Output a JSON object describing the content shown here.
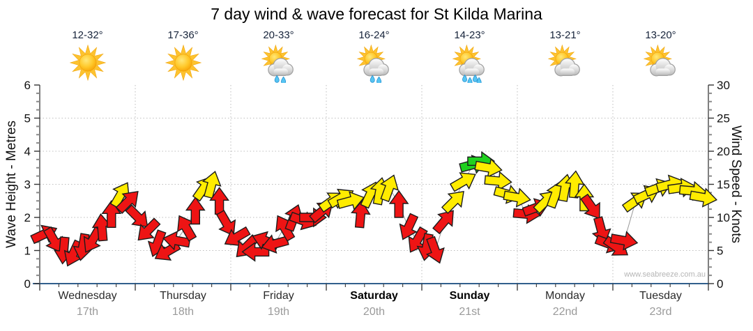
{
  "title": "7 day wind & wave forecast for St Kilda Marina",
  "watermark": "www.seabreeze.com.au",
  "axes": {
    "left": {
      "title": "Wave Height - Metres",
      "ticks": [
        "0",
        "1",
        "2",
        "3",
        "4",
        "5",
        "6"
      ]
    },
    "right": {
      "title": "Wind Speed - Knots",
      "ticks": [
        "0",
        "5",
        "10",
        "15",
        "20",
        "25",
        "30"
      ]
    }
  },
  "days": [
    {
      "name": "Wednesday",
      "date": "17th",
      "temp": "12-32°",
      "icon": "sun",
      "weekend": false
    },
    {
      "name": "Thursday",
      "date": "18th",
      "temp": "17-36°",
      "icon": "sun",
      "weekend": false
    },
    {
      "name": "Friday",
      "date": "19th",
      "temp": "20-33°",
      "icon": "sun-cloud-rain",
      "weekend": false
    },
    {
      "name": "Saturday",
      "date": "20th",
      "temp": "16-24°",
      "icon": "sun-cloud-rain",
      "weekend": true
    },
    {
      "name": "Sunday",
      "date": "21st",
      "temp": "14-23°",
      "icon": "sun-cloud-rain-heavy",
      "weekend": true
    },
    {
      "name": "Monday",
      "date": "22nd",
      "temp": "13-21°",
      "icon": "sun-cloud",
      "weekend": false
    },
    {
      "name": "Tuesday",
      "date": "23rd",
      "temp": "13-20°",
      "icon": "sun-cloud",
      "weekend": false
    }
  ],
  "chart_data": {
    "type": "wind-arrow-series",
    "title": "7 day wind & wave forecast for St Kilda Marina",
    "x_axis": {
      "unit": "days",
      "range": [
        0,
        7
      ],
      "day_labels": [
        "Wednesday 17th",
        "Thursday 18th",
        "Friday 19th",
        "Saturday 20th",
        "Sunday 21st",
        "Monday 22nd",
        "Tuesday 23rd"
      ]
    },
    "y_left": {
      "label": "Wave Height - Metres",
      "range": [
        0,
        6
      ],
      "gridlines": [
        1,
        2,
        3,
        4,
        5
      ]
    },
    "y_right": {
      "label": "Wind Speed - Knots",
      "range": [
        0,
        30
      ]
    },
    "colors": {
      "r": "#ee1414",
      "y": "#ffec00",
      "g": "#1fd11f"
    },
    "color_meaning": {
      "r": "light wind",
      "y": "moderate wind",
      "g": "fresh wind"
    },
    "points_format": [
      "time_days",
      "wind_knots",
      "arrow_dir_deg_0_is_east_cw",
      "color"
    ],
    "points": [
      [
        0.05,
        7.5,
        -25,
        "r"
      ],
      [
        0.15,
        6.5,
        60,
        "r"
      ],
      [
        0.25,
        5.0,
        95,
        "r"
      ],
      [
        0.35,
        4.5,
        115,
        "r"
      ],
      [
        0.45,
        5.5,
        100,
        "r"
      ],
      [
        0.55,
        6.5,
        120,
        "r"
      ],
      [
        0.65,
        8.5,
        -95,
        "r"
      ],
      [
        0.75,
        10.5,
        -90,
        "r"
      ],
      [
        0.85,
        13.5,
        -60,
        "y"
      ],
      [
        0.93,
        12.5,
        -45,
        "r"
      ],
      [
        1.03,
        10.0,
        45,
        "r"
      ],
      [
        1.13,
        8.0,
        135,
        "r"
      ],
      [
        1.23,
        6.0,
        110,
        "r"
      ],
      [
        1.33,
        4.8,
        150,
        "r"
      ],
      [
        1.43,
        6.5,
        -170,
        "r"
      ],
      [
        1.53,
        8.5,
        -120,
        "r"
      ],
      [
        1.63,
        11.0,
        -90,
        "r"
      ],
      [
        1.72,
        14.5,
        -55,
        "y"
      ],
      [
        1.8,
        15.0,
        -75,
        "y"
      ],
      [
        1.88,
        12.5,
        -90,
        "r"
      ],
      [
        1.96,
        9.0,
        60,
        "r"
      ],
      [
        2.06,
        7.0,
        150,
        "r"
      ],
      [
        2.16,
        5.5,
        135,
        "r"
      ],
      [
        2.26,
        4.8,
        180,
        "r"
      ],
      [
        2.36,
        6.5,
        -160,
        "r"
      ],
      [
        2.46,
        6.0,
        165,
        "r"
      ],
      [
        2.56,
        8.5,
        -120,
        "r"
      ],
      [
        2.66,
        10.0,
        -70,
        "r"
      ],
      [
        2.76,
        9.5,
        20,
        "r"
      ],
      [
        2.86,
        10.0,
        0,
        "r"
      ],
      [
        2.96,
        11.0,
        -40,
        "r"
      ],
      [
        3.06,
        12.5,
        -35,
        "y"
      ],
      [
        3.16,
        13.0,
        -30,
        "y"
      ],
      [
        3.26,
        12.5,
        -15,
        "y"
      ],
      [
        3.36,
        10.5,
        -85,
        "r"
      ],
      [
        3.46,
        13.5,
        -65,
        "y"
      ],
      [
        3.56,
        14.0,
        -80,
        "y"
      ],
      [
        3.66,
        14.5,
        -70,
        "y"
      ],
      [
        3.76,
        12.0,
        -90,
        "r"
      ],
      [
        3.86,
        8.5,
        115,
        "r"
      ],
      [
        3.95,
        6.5,
        120,
        "r"
      ],
      [
        4.05,
        5.5,
        100,
        "r"
      ],
      [
        4.14,
        5.0,
        70,
        "r"
      ],
      [
        4.24,
        9.5,
        -50,
        "r"
      ],
      [
        4.34,
        12.5,
        -45,
        "y"
      ],
      [
        4.44,
        15.5,
        -30,
        "y"
      ],
      [
        4.54,
        18.0,
        -15,
        "g"
      ],
      [
        4.62,
        18.5,
        0,
        "g"
      ],
      [
        4.7,
        17.5,
        10,
        "y"
      ],
      [
        4.8,
        15.5,
        5,
        "y"
      ],
      [
        4.9,
        13.5,
        15,
        "y"
      ],
      [
        5.0,
        13.0,
        10,
        "y"
      ],
      [
        5.1,
        10.5,
        5,
        "r"
      ],
      [
        5.2,
        11.5,
        -20,
        "r"
      ],
      [
        5.3,
        12.5,
        -45,
        "y"
      ],
      [
        5.4,
        13.5,
        -70,
        "y"
      ],
      [
        5.5,
        14.5,
        -80,
        "y"
      ],
      [
        5.6,
        15.0,
        -85,
        "y"
      ],
      [
        5.7,
        13.0,
        -90,
        "y"
      ],
      [
        5.78,
        11.5,
        55,
        "r"
      ],
      [
        5.88,
        8.0,
        75,
        "r"
      ],
      [
        5.96,
        6.0,
        20,
        "r"
      ],
      [
        6.04,
        5.5,
        35,
        "r"
      ],
      [
        6.12,
        6.5,
        10,
        "r"
      ],
      [
        6.24,
        12.5,
        -35,
        "y"
      ],
      [
        6.36,
        13.5,
        -25,
        "y"
      ],
      [
        6.48,
        14.5,
        -20,
        "y"
      ],
      [
        6.6,
        15.0,
        -15,
        "y"
      ],
      [
        6.72,
        14.5,
        -8,
        "y"
      ],
      [
        6.84,
        14.0,
        5,
        "y"
      ],
      [
        6.95,
        13.0,
        10,
        "y"
      ]
    ]
  }
}
